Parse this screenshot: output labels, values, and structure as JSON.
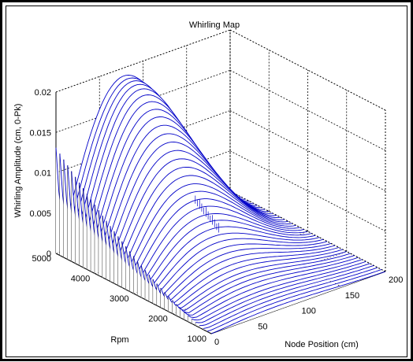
{
  "chart_data": {
    "type": "surface-waterfall",
    "title": "Whirling Map",
    "xlabel": "Node Position (cm)",
    "ylabel": "Rpm",
    "zlabel": "Whirling Amplitude (cm, 0-Pk)",
    "x_ticks": [
      "0",
      "50",
      "100",
      "150",
      "200"
    ],
    "y_ticks": [
      "1000",
      "2000",
      "3000",
      "4000",
      "5000"
    ],
    "z_ticks": [
      "0",
      "0.005",
      "0.01",
      "0.015",
      "0.02"
    ],
    "xlim": [
      0,
      200
    ],
    "ylim": [
      1000,
      5000
    ],
    "zlim": [
      0,
      0.02
    ],
    "grid": true,
    "line_color": "#0000c8",
    "bar_color": "#303030",
    "rpm_slices": [
      1000,
      1100,
      1200,
      1300,
      1400,
      1500,
      1600,
      1700,
      1800,
      1900,
      2000,
      2100,
      2200,
      2300,
      2400,
      2500,
      2600,
      2700,
      2800,
      2900,
      3000,
      3100,
      3200,
      3300,
      3400,
      3500,
      3600,
      3700,
      3800,
      3900,
      4000,
      4100,
      4200,
      4300,
      4400,
      4500,
      4600,
      4700,
      4800,
      4900,
      5000
    ],
    "peak_amplitude_by_rpm": [
      0.0005,
      0.0006,
      0.0007,
      0.0008,
      0.0009,
      0.001,
      0.0012,
      0.0014,
      0.0016,
      0.0018,
      0.002,
      0.0023,
      0.0026,
      0.003,
      0.0034,
      0.0038,
      0.0043,
      0.0048,
      0.0054,
      0.006,
      0.0066,
      0.0073,
      0.008,
      0.0087,
      0.0094,
      0.0102,
      0.011,
      0.0118,
      0.0126,
      0.0134,
      0.0142,
      0.015,
      0.0158,
      0.0165,
      0.0172,
      0.0178,
      0.0183,
      0.0186,
      0.0188,
      0.0189,
      0.019
    ],
    "end_spike_amplitude": 0.0131
  }
}
